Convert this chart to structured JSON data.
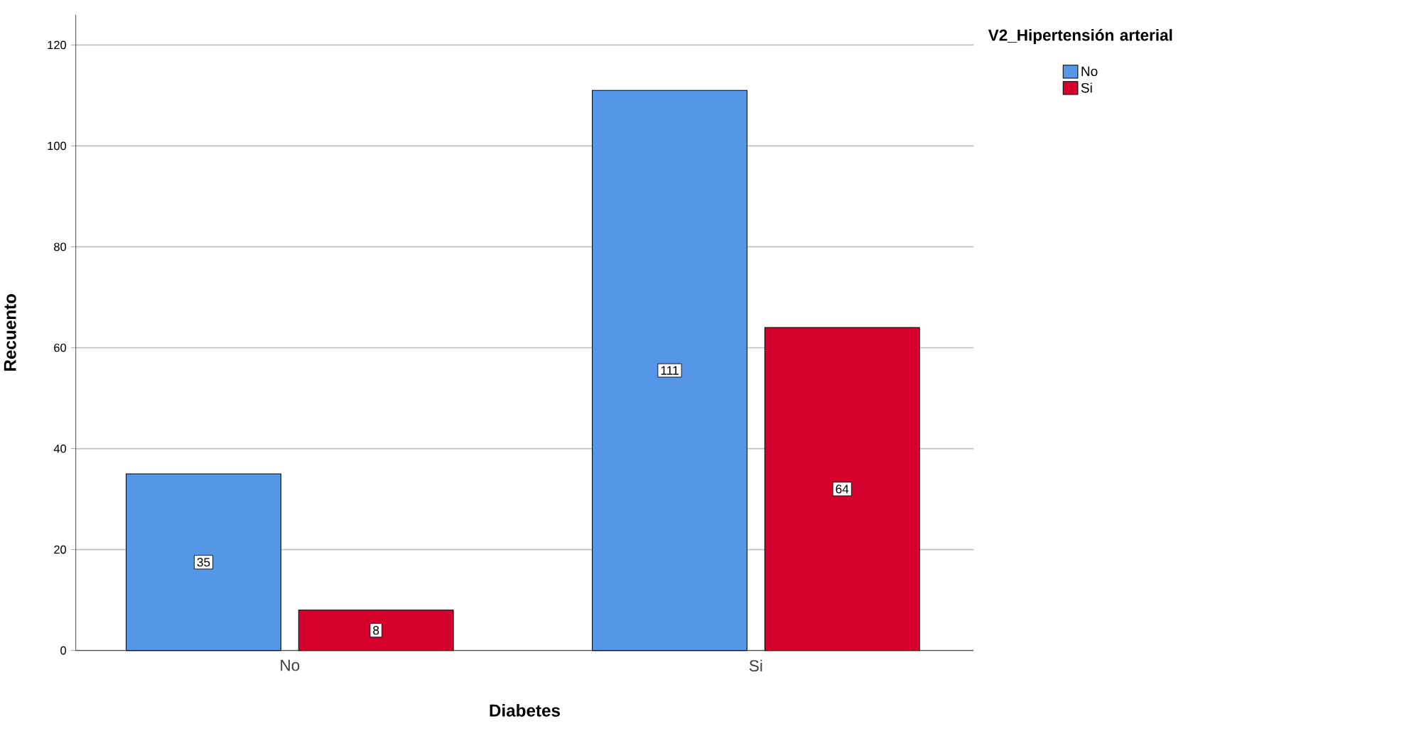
{
  "chart_data": {
    "type": "bar",
    "xlabel": "Diabetes",
    "ylabel": "Recuento",
    "legend_title": "V2_Hipertensión arterial",
    "categories": [
      "No",
      "Si"
    ],
    "series": [
      {
        "name": "No",
        "color": "#5596e6",
        "values": [
          35,
          111
        ]
      },
      {
        "name": "Si",
        "color": "#d6002c",
        "values": [
          8,
          64
        ]
      }
    ],
    "ylim": [
      0,
      126
    ],
    "yticks": [
      0,
      20,
      40,
      60,
      80,
      100,
      120
    ],
    "grid": "y",
    "legend": "right",
    "data_labels": true
  }
}
